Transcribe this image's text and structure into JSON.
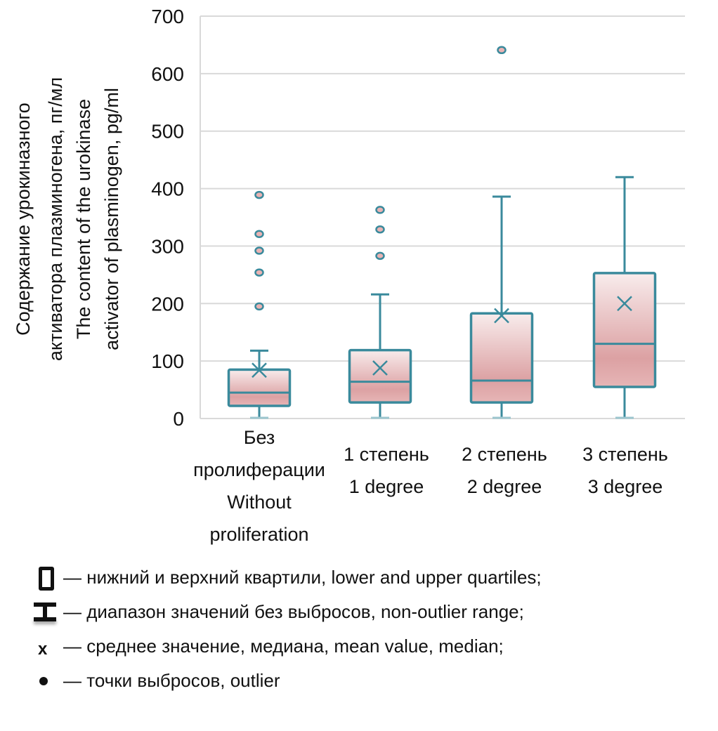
{
  "chart_data": {
    "type": "boxplot",
    "ylabel_lines": [
      "Содержание урокиназного",
      "активатора плазминогена, пг/мл",
      "The content of the urokinase",
      "activator of plasminogen, pg/ml"
    ],
    "ylim": [
      0,
      700
    ],
    "yticks": [
      0,
      100,
      200,
      300,
      400,
      500,
      600,
      700
    ],
    "ytick_labels": [
      "0",
      "100",
      "200",
      "300",
      "400",
      "500",
      "600",
      "700"
    ],
    "grid": true,
    "categories": [
      {
        "label_lines": [
          "Без",
          "пролиферации",
          "Without",
          "proliferation"
        ]
      },
      {
        "label_lines": [
          "1 степень",
          "1 degree"
        ]
      },
      {
        "label_lines": [
          "2 степень",
          "2 degree"
        ]
      },
      {
        "label_lines": [
          "3 степень",
          "3 degree"
        ]
      }
    ],
    "boxes": [
      {
        "whisker_low": 0,
        "q1": 22,
        "median": 45,
        "q3": 85,
        "whisker_high": 118,
        "mean": 84,
        "outliers": [
          389,
          321,
          292,
          254,
          195
        ]
      },
      {
        "whisker_low": 0,
        "q1": 28,
        "median": 64,
        "q3": 119,
        "whisker_high": 216,
        "mean": 88,
        "outliers": [
          363,
          329,
          283
        ]
      },
      {
        "whisker_low": 0,
        "q1": 28,
        "median": 66,
        "q3": 183,
        "whisker_high": 386,
        "mean": 179,
        "outliers": [
          641
        ]
      },
      {
        "whisker_low": 0,
        "q1": 55,
        "median": 130,
        "q3": 253,
        "whisker_high": 420,
        "mean": 200,
        "outliers": []
      }
    ],
    "colors": {
      "stroke": "#3a8a9c",
      "fill_top": "#f8ecec",
      "fill_bottom": "#dca1a3",
      "outlier_fill": "#eab3b3",
      "grid": "#d9d9d9",
      "whisker_cap_low": "#9cc6cf"
    }
  },
  "legend": [
    {
      "icon": "box-icon",
      "text": "— нижний и верхний квартили, lower and upper quartiles;"
    },
    {
      "icon": "whisker-icon",
      "text": "— диапазон значений без выбросов, non-outlier range;"
    },
    {
      "icon": "x-mark-icon",
      "text": "— среднее значение, медиана, mean value, median;",
      "symbol": "x"
    },
    {
      "icon": "dot-icon",
      "text": "— точки выбросов, outlier"
    }
  ]
}
